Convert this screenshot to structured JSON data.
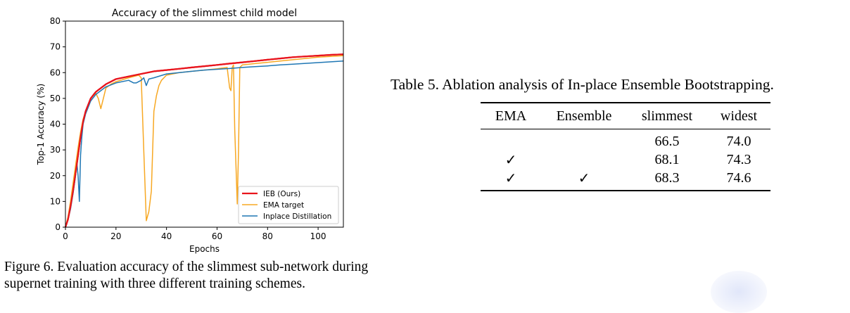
{
  "figure6": {
    "caption": "Figure 6. Evaluation accuracy of the slimmest sub-network during supernet training with three different training schemes.",
    "chart_data": {
      "type": "line",
      "title": "Accuracy of the slimmest child model",
      "xlabel": "Epochs",
      "ylabel": "Top-1 Accuracy (%)",
      "xlim": [
        0,
        110
      ],
      "ylim": [
        0,
        80
      ],
      "xticks": [
        0,
        20,
        40,
        60,
        80,
        100
      ],
      "yticks": [
        0,
        10,
        20,
        30,
        40,
        50,
        60,
        70,
        80
      ],
      "grid": false,
      "legend_position": "bottom-right",
      "series": [
        {
          "name": "IEB (Ours)",
          "color": "#e8141c",
          "x": [
            0,
            1,
            2,
            3,
            4,
            5,
            6,
            7,
            8,
            10,
            12,
            14,
            16,
            18,
            20,
            25,
            30,
            35,
            40,
            45,
            50,
            55,
            60,
            65,
            70,
            75,
            80,
            85,
            90,
            95,
            100,
            105,
            110
          ],
          "y": [
            0,
            3,
            8,
            14,
            21,
            28,
            35,
            41,
            45,
            50,
            52.5,
            54,
            55.5,
            56.5,
            57.5,
            58.5,
            59.5,
            60.5,
            61,
            61.5,
            62,
            62.5,
            63,
            63.5,
            64,
            64.5,
            65,
            65.5,
            66,
            66.3,
            66.6,
            66.9,
            67.1
          ]
        },
        {
          "name": "EMA target",
          "color": "#f7a823",
          "x": [
            0,
            1,
            2,
            3,
            4,
            5,
            6,
            7,
            8,
            10,
            12,
            13,
            14,
            15,
            16,
            18,
            20,
            25,
            29,
            30,
            31,
            32,
            33,
            34,
            35,
            36,
            37,
            38,
            40,
            45,
            50,
            55,
            60,
            64,
            65,
            65.5,
            66,
            66.5,
            67,
            68,
            68.5,
            69,
            70,
            75,
            80,
            85,
            90,
            95,
            100,
            105,
            110
          ],
          "y": [
            0,
            4,
            10,
            17,
            24,
            31,
            37,
            42,
            45,
            50,
            52,
            50,
            46,
            50,
            54,
            55.5,
            56.5,
            58,
            59,
            58,
            30,
            2.5,
            6,
            14,
            45,
            51,
            55,
            57,
            59,
            60,
            60.5,
            61,
            61.5,
            62,
            54,
            53,
            62,
            63,
            38,
            9,
            30,
            62,
            63,
            63.5,
            64,
            64.5,
            65,
            65.5,
            66,
            66.3,
            66.6
          ]
        },
        {
          "name": "Inplace Distillation",
          "color": "#1f77b4",
          "x": [
            0,
            1,
            2,
            3,
            4,
            4.5,
            5,
            5.5,
            6,
            6.5,
            7,
            8,
            10,
            12,
            14,
            16,
            20,
            25,
            27,
            28,
            30,
            31,
            32,
            33,
            35,
            40,
            45,
            50,
            55,
            60,
            65,
            70,
            75,
            80,
            85,
            90,
            95,
            100,
            105,
            110
          ],
          "y": [
            0,
            3,
            7,
            13,
            20,
            25,
            20,
            10,
            28,
            35,
            40,
            44,
            49,
            51.5,
            53,
            54.5,
            56,
            57,
            56,
            56,
            57,
            58,
            55,
            57.5,
            58,
            59.5,
            60,
            60.5,
            61,
            61.3,
            61.6,
            62,
            62.3,
            62.6,
            63,
            63.3,
            63.6,
            63.9,
            64.2,
            64.5
          ]
        }
      ]
    }
  },
  "table5": {
    "caption": "Table 5. Ablation analysis of In-place Ensemble Bootstrapping.",
    "headers": [
      "EMA",
      "Ensemble",
      "slimmest",
      "widest"
    ],
    "rows": [
      {
        "ema": "",
        "ensemble": "",
        "slimmest": "66.5",
        "widest": "74.0"
      },
      {
        "ema": "✓",
        "ensemble": "",
        "slimmest": "68.1",
        "widest": "74.3"
      },
      {
        "ema": "✓",
        "ensemble": "✓",
        "slimmest": "68.3",
        "widest": "74.6"
      }
    ]
  }
}
